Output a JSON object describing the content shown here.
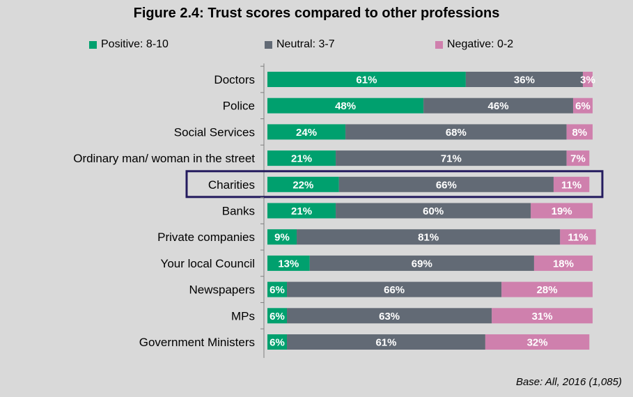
{
  "chart_data": {
    "type": "bar",
    "orientation": "horizontal",
    "stacked": true,
    "title": "Figure 2.4: Trust scores compared to other professions",
    "categories": [
      "Doctors",
      "Police",
      "Social Services",
      "Ordinary man/ woman in the street",
      "Charities",
      "Banks",
      "Private companies",
      "Your local Council",
      "Newspapers",
      "MPs",
      "Government Ministers"
    ],
    "series": [
      {
        "name": "Positive: 8-10",
        "color": "#00a06e",
        "values": [
          61,
          48,
          24,
          21,
          22,
          21,
          9,
          13,
          6,
          6,
          6
        ],
        "labels": [
          "61%",
          "48%",
          "24%",
          "21%",
          "22%",
          "21%",
          "9%",
          "13%",
          "6%",
          "6%",
          "6%"
        ]
      },
      {
        "name": "Neutral: 3-7",
        "color": "#626a75",
        "values": [
          36,
          46,
          68,
          71,
          66,
          60,
          81,
          69,
          66,
          63,
          61
        ],
        "labels": [
          "36%",
          "46%",
          "68%",
          "71%",
          "66%",
          "60%",
          "81%",
          "69%",
          "66%",
          "63%",
          "61%"
        ]
      },
      {
        "name": "Negative: 0-2",
        "color": "#cf80ad",
        "values": [
          3,
          6,
          8,
          7,
          11,
          19,
          11,
          18,
          28,
          31,
          32
        ],
        "labels": [
          "3%",
          "6%",
          "8%",
          "7%",
          "11%",
          "19%",
          "11%",
          "18%",
          "28%",
          "31%",
          "32%"
        ]
      }
    ],
    "xlim": [
      0,
      100
    ],
    "legend_position": "top",
    "highlighted_category": "Charities",
    "highlight_color": "#241b5e",
    "grid": false
  },
  "footnote": "Base: All, 2016 (1,085)"
}
